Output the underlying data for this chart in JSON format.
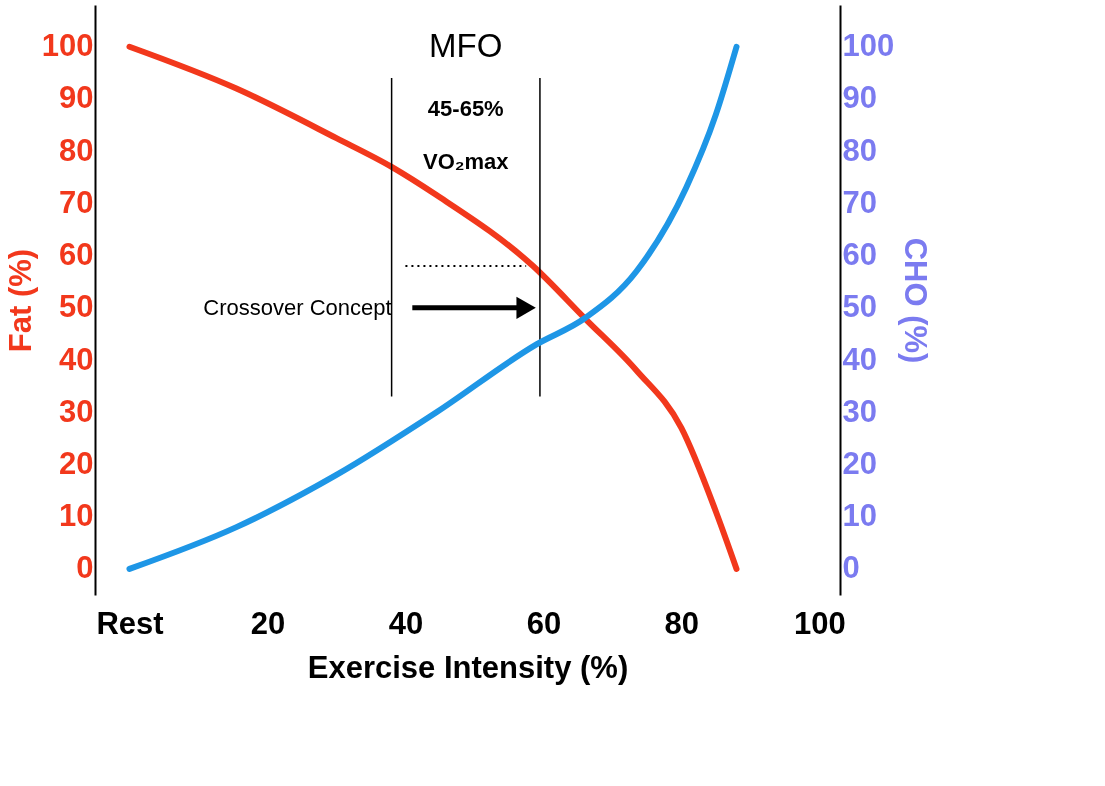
{
  "chart_data": {
    "type": "line",
    "xlabel": "Exercise Intensity (%)",
    "ylabel": "Fat (%)",
    "y2label": "CHO (%)",
    "xlim": [
      -5,
      103
    ],
    "xticks": [
      {
        "value": 0,
        "label": "Rest"
      },
      20,
      40,
      60,
      80,
      100
    ],
    "ylim": [
      -5,
      108
    ],
    "yticks": [
      0,
      10,
      20,
      30,
      40,
      50,
      60,
      70,
      80,
      90,
      100
    ],
    "y2lim": [
      -5,
      108
    ],
    "y2ticks": [
      0,
      10,
      20,
      30,
      40,
      50,
      60,
      70,
      80,
      90,
      100
    ],
    "series": [
      {
        "color": "#f2381c",
        "x": [
          0,
          15.5,
          30,
          38,
          44.5,
          58.5,
          66,
          73.5,
          80,
          85,
          88
        ],
        "values": [
          100,
          92,
          82.5,
          77,
          71.6,
          58,
          48,
          38,
          27,
          11,
          0
        ]
      },
      {
        "color": "#1e96e6",
        "axis": "y2",
        "x": [
          0,
          15.5,
          30,
          44.5,
          59,
          66,
          73.5,
          80.7,
          85,
          88
        ],
        "values": [
          0,
          8,
          18,
          30,
          43,
          48,
          57,
          73,
          87,
          100
        ]
      }
    ],
    "annotations": [
      "MFO",
      "45-65%",
      "VO₂max",
      {
        "text": "Crossover Concept"
      }
    ],
    "grid": false,
    "marker": "none",
    "line_style": "solid"
  }
}
